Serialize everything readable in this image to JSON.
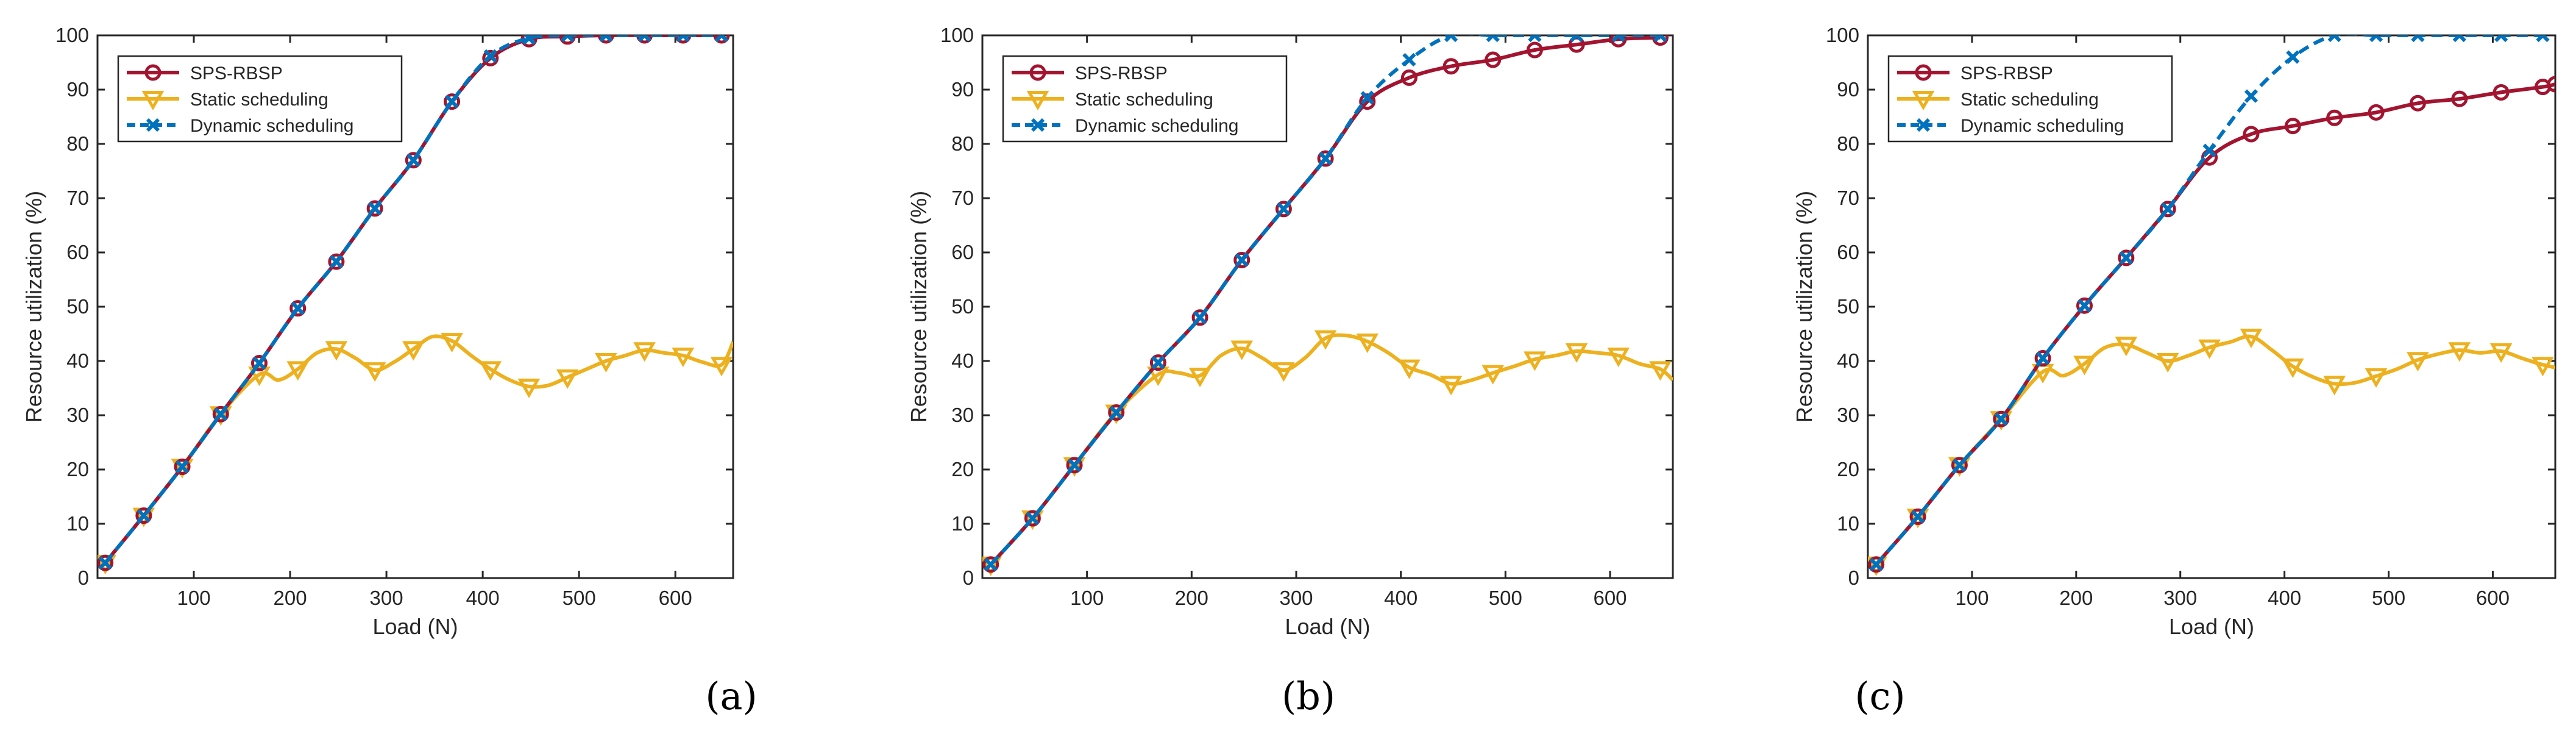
{
  "colors": {
    "sps": "#A2142F",
    "static": "#EDB120",
    "dynamic": "#0072BD",
    "axis": "#262626"
  },
  "chart_data": [
    {
      "type": "line",
      "panel_label": "(a)",
      "label_letter": "a",
      "xlabel": "Load (N)",
      "ylabel": "Resource utilization (%)",
      "xlim": [
        0,
        660
      ],
      "ylim": [
        0,
        100
      ],
      "xticks": [
        100,
        200,
        300,
        400,
        500,
        600
      ],
      "yticks": [
        0,
        10,
        20,
        30,
        40,
        50,
        60,
        70,
        80,
        90,
        100
      ],
      "legend_position": "top-left",
      "series": [
        {
          "name": "SPS-RBSP",
          "key": "sps",
          "marker": "circle",
          "x": [
            8,
            48,
            88,
            128,
            168,
            208,
            248,
            288,
            328,
            368,
            408,
            448,
            488,
            528,
            568,
            608,
            648
          ],
          "y": [
            2.8,
            11.5,
            20.5,
            30.2,
            39.6,
            49.7,
            58.3,
            68.1,
            77.0,
            87.8,
            95.8,
            99.3,
            99.8,
            100,
            100,
            100,
            100
          ]
        },
        {
          "name": "Static scheduling",
          "key": "static",
          "marker": "triangle-down",
          "x": [
            8,
            48,
            88,
            128,
            168,
            188,
            208,
            228,
            248,
            268,
            288,
            308,
            328,
            348,
            368,
            388,
            408,
            428,
            448,
            468,
            488,
            508,
            528,
            548,
            568,
            588,
            608,
            628,
            648,
            660
          ],
          "y": [
            2.8,
            11.5,
            20.5,
            30.2,
            37.5,
            36.5,
            38.5,
            41.5,
            42.2,
            40.5,
            38.3,
            39.8,
            42.2,
            44.5,
            43.7,
            41.0,
            38.5,
            36.5,
            35.3,
            35.5,
            37.0,
            38.5,
            40.0,
            41.0,
            42.0,
            41.5,
            41.0,
            39.8,
            39.3,
            43.5
          ],
          "marker_x": [
            8,
            48,
            88,
            128,
            168,
            208,
            248,
            288,
            328,
            368,
            408,
            448,
            488,
            528,
            568,
            608,
            648
          ]
        },
        {
          "name": "Dynamic scheduling",
          "key": "dynamic",
          "marker": "x",
          "x": [
            8,
            48,
            88,
            128,
            168,
            208,
            248,
            288,
            328,
            368,
            408,
            448,
            488,
            528,
            568,
            608,
            648
          ],
          "y": [
            2.8,
            11.5,
            20.5,
            30.2,
            39.6,
            49.7,
            58.3,
            68.1,
            77.0,
            87.8,
            96.2,
            99.5,
            100,
            100,
            100,
            100,
            100
          ]
        }
      ]
    },
    {
      "type": "line",
      "panel_label": "(b)",
      "label_letter": "b",
      "xlabel": "Load (N)",
      "ylabel": "Resource utilization (%)",
      "xlim": [
        0,
        660
      ],
      "ylim": [
        0,
        100
      ],
      "xticks": [
        100,
        200,
        300,
        400,
        500,
        600
      ],
      "yticks": [
        0,
        10,
        20,
        30,
        40,
        50,
        60,
        70,
        80,
        90,
        100
      ],
      "legend_position": "top-left",
      "series": [
        {
          "name": "SPS-RBSP",
          "key": "sps",
          "marker": "circle",
          "x": [
            8,
            48,
            88,
            128,
            168,
            208,
            248,
            288,
            328,
            368,
            408,
            448,
            488,
            528,
            568,
            608,
            648
          ],
          "y": [
            2.5,
            11.0,
            20.8,
            30.5,
            39.7,
            48.0,
            58.6,
            68.0,
            77.3,
            87.8,
            92.2,
            94.3,
            95.5,
            97.3,
            98.3,
            99.3,
            99.6
          ]
        },
        {
          "name": "Static scheduling",
          "key": "static",
          "marker": "triangle-down",
          "x": [
            8,
            48,
            88,
            128,
            168,
            188,
            208,
            228,
            248,
            268,
            288,
            308,
            328,
            348,
            368,
            388,
            408,
            428,
            448,
            468,
            488,
            508,
            528,
            548,
            568,
            588,
            608,
            628,
            648,
            660
          ],
          "y": [
            2.5,
            11.0,
            20.8,
            30.5,
            37.5,
            37.8,
            37.3,
            41.0,
            42.3,
            40.5,
            38.3,
            40.5,
            44.2,
            44.7,
            43.6,
            41.5,
            38.8,
            37.5,
            35.8,
            36.5,
            37.8,
            39.0,
            40.3,
            41.0,
            41.8,
            41.5,
            41.0,
            39.5,
            38.5,
            36.5
          ],
          "marker_x": [
            8,
            48,
            88,
            128,
            168,
            208,
            248,
            288,
            328,
            368,
            408,
            448,
            488,
            528,
            568,
            608,
            648
          ]
        },
        {
          "name": "Dynamic scheduling",
          "key": "dynamic",
          "marker": "x",
          "x": [
            8,
            48,
            88,
            128,
            168,
            208,
            248,
            288,
            328,
            368,
            408,
            448,
            488,
            528,
            568,
            608,
            648
          ],
          "y": [
            2.5,
            11.0,
            20.8,
            30.5,
            39.7,
            48.0,
            58.6,
            68.0,
            77.3,
            88.5,
            95.5,
            100,
            100,
            100,
            100,
            100,
            100
          ]
        }
      ]
    },
    {
      "type": "line",
      "panel_label": "(c)",
      "label_letter": "c",
      "xlabel": "Load (N)",
      "ylabel": "Resource utilization (%)",
      "xlim": [
        0,
        660
      ],
      "ylim": [
        0,
        100
      ],
      "xticks": [
        100,
        200,
        300,
        400,
        500,
        600
      ],
      "yticks": [
        0,
        10,
        20,
        30,
        40,
        50,
        60,
        70,
        80,
        90,
        100
      ],
      "legend_position": "top-left",
      "series": [
        {
          "name": "SPS-RBSP",
          "key": "sps",
          "marker": "circle",
          "x": [
            8,
            48,
            88,
            128,
            168,
            208,
            248,
            288,
            328,
            368,
            408,
            448,
            488,
            528,
            568,
            608,
            648,
            660
          ],
          "y": [
            2.5,
            11.3,
            20.8,
            29.3,
            40.5,
            50.2,
            59.0,
            68.0,
            77.5,
            81.8,
            83.3,
            84.8,
            85.8,
            87.5,
            88.3,
            89.5,
            90.5,
            91.0
          ]
        },
        {
          "name": "Static scheduling",
          "key": "static",
          "marker": "triangle-down",
          "x": [
            8,
            48,
            88,
            128,
            168,
            188,
            208,
            228,
            248,
            268,
            288,
            308,
            328,
            348,
            368,
            388,
            408,
            428,
            448,
            468,
            488,
            508,
            528,
            548,
            568,
            588,
            608,
            628,
            648,
            660
          ],
          "y": [
            2.5,
            11.3,
            20.8,
            29.3,
            38.0,
            37.3,
            39.5,
            42.5,
            43.0,
            41.5,
            40.0,
            41.0,
            42.5,
            43.5,
            44.5,
            42.0,
            39.0,
            37.0,
            35.8,
            36.0,
            37.2,
            38.5,
            40.2,
            41.3,
            42.0,
            41.5,
            41.8,
            40.5,
            39.3,
            38.8
          ],
          "marker_x": [
            8,
            48,
            88,
            128,
            168,
            208,
            248,
            288,
            328,
            368,
            408,
            448,
            488,
            528,
            568,
            608,
            648
          ]
        },
        {
          "name": "Dynamic scheduling",
          "key": "dynamic",
          "marker": "x",
          "x": [
            8,
            48,
            88,
            128,
            168,
            208,
            248,
            288,
            328,
            368,
            408,
            448,
            488,
            528,
            568,
            608,
            648
          ],
          "y": [
            2.5,
            11.3,
            20.8,
            29.3,
            40.5,
            50.2,
            59.0,
            68.0,
            78.8,
            88.8,
            96.0,
            100,
            100,
            100,
            100,
            100,
            100
          ]
        }
      ]
    }
  ]
}
